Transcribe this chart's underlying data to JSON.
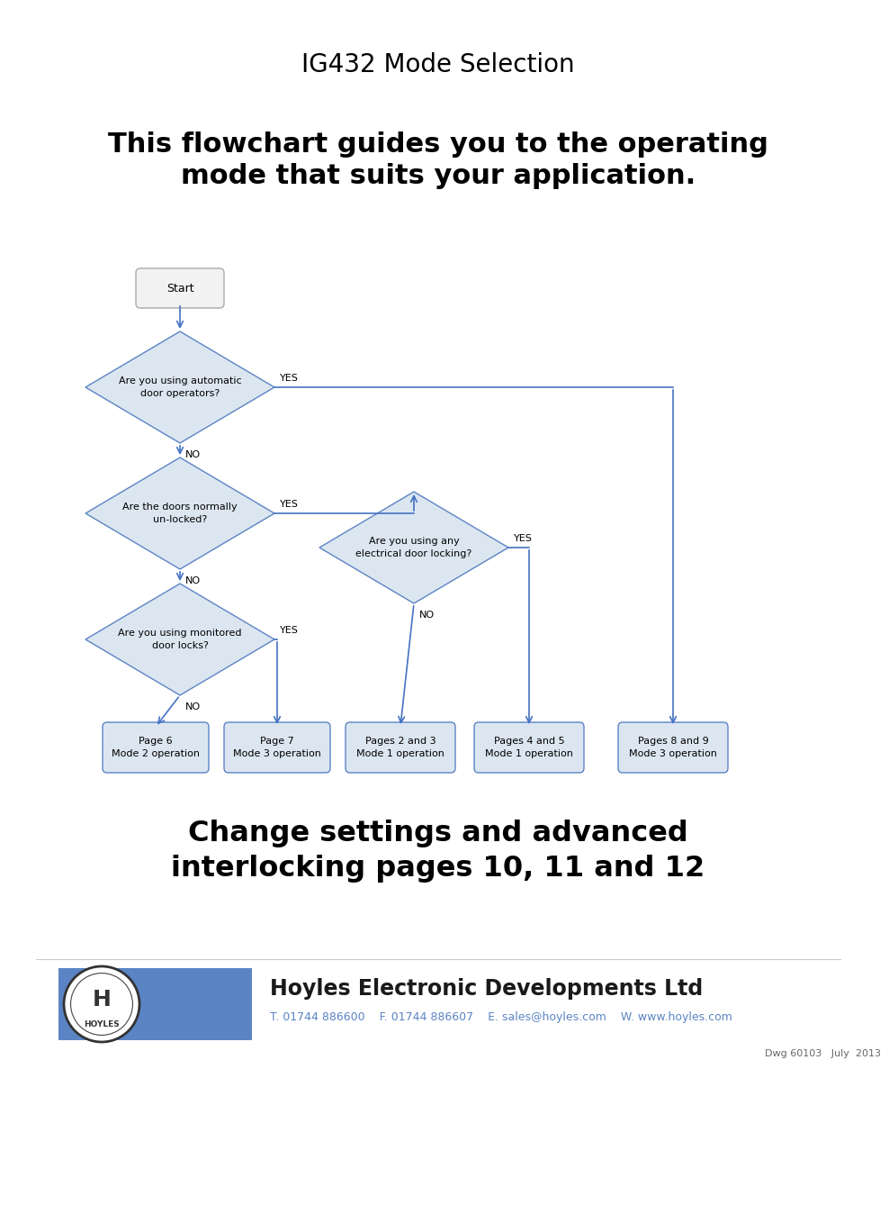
{
  "title": "IG432 Mode Selection",
  "subtitle": "This flowchart guides you to the operating\nmode that suits your application.",
  "bottom_text1": "Change settings and advanced\ninterlocking pages 10, 11 and 12",
  "company_name": "Hoyles Electronic Developments Ltd",
  "contact_line": "T. 01744 886600    F. 01744 886607    E. sales@hoyles.com    W. www.hoyles.com",
  "dwg_text": "Dwg 60103   July  2013",
  "flow_color": "#4472C4",
  "box_fill": "#dce6f1",
  "box_edge": "#5b84c4",
  "text_color": "#000000",
  "bg_color": "#ffffff",
  "header_bar_color": "#5b84c4",
  "title_fontsize": 20,
  "subtitle_fontsize": 22
}
